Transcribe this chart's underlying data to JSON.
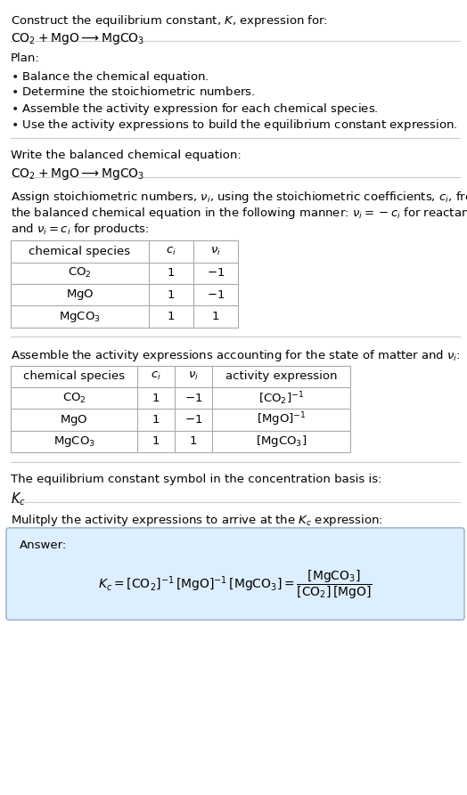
{
  "title_line1": "Construct the equilibrium constant, $K$, expression for:",
  "title_line2": "$\\mathrm{CO_2 + MgO \\longrightarrow MgCO_3}$",
  "plan_header": "Plan:",
  "plan_items": [
    "$\\bullet$ Balance the chemical equation.",
    "$\\bullet$ Determine the stoichiometric numbers.",
    "$\\bullet$ Assemble the activity expression for each chemical species.",
    "$\\bullet$ Use the activity expressions to build the equilibrium constant expression."
  ],
  "balanced_eq_header": "Write the balanced chemical equation:",
  "balanced_eq": "$\\mathrm{CO_2 + MgO \\longrightarrow MgCO_3}$",
  "stoich_intro_lines": [
    "Assign stoichiometric numbers, $\\nu_i$, using the stoichiometric coefficients, $c_i$, from",
    "the balanced chemical equation in the following manner: $\\nu_i = -c_i$ for reactants",
    "and $\\nu_i = c_i$ for products:"
  ],
  "table1_headers": [
    "chemical species",
    "$c_i$",
    "$\\nu_i$"
  ],
  "table1_rows": [
    [
      "$\\mathrm{CO_2}$",
      "1",
      "$-1$"
    ],
    [
      "$\\mathrm{MgO}$",
      "1",
      "$-1$"
    ],
    [
      "$\\mathrm{MgCO_3}$",
      "1",
      "$1$"
    ]
  ],
  "activity_intro": "Assemble the activity expressions accounting for the state of matter and $\\nu_i$:",
  "table2_headers": [
    "chemical species",
    "$c_i$",
    "$\\nu_i$",
    "activity expression"
  ],
  "table2_rows": [
    [
      "$\\mathrm{CO_2}$",
      "1",
      "$-1$",
      "$[\\mathrm{CO_2}]^{-1}$"
    ],
    [
      "$\\mathrm{MgO}$",
      "1",
      "$-1$",
      "$[\\mathrm{MgO}]^{-1}$"
    ],
    [
      "$\\mathrm{MgCO_3}$",
      "1",
      "$1$",
      "$[\\mathrm{MgCO_3}]$"
    ]
  ],
  "kc_text": "The equilibrium constant symbol in the concentration basis is:",
  "kc_symbol": "$K_c$",
  "multiply_text": "Mulitply the activity expressions to arrive at the $K_c$ expression:",
  "answer_label": "Answer:",
  "answer_eq": "$K_c = [\\mathrm{CO_2}]^{-1}\\,[\\mathrm{MgO}]^{-1}\\,[\\mathrm{MgCO_3}] = \\dfrac{[\\mathrm{MgCO_3}]}{[\\mathrm{CO_2}]\\,[\\mathrm{MgO}]}$",
  "bg_color": "#ffffff",
  "rule_color": "#cccccc",
  "table_border_color": "#aaaaaa",
  "answer_box_color": "#ddeeff",
  "answer_box_border": "#99aacc",
  "text_color": "#000000",
  "font_size": 9.5,
  "fig_width": 5.24,
  "fig_height": 8.93
}
